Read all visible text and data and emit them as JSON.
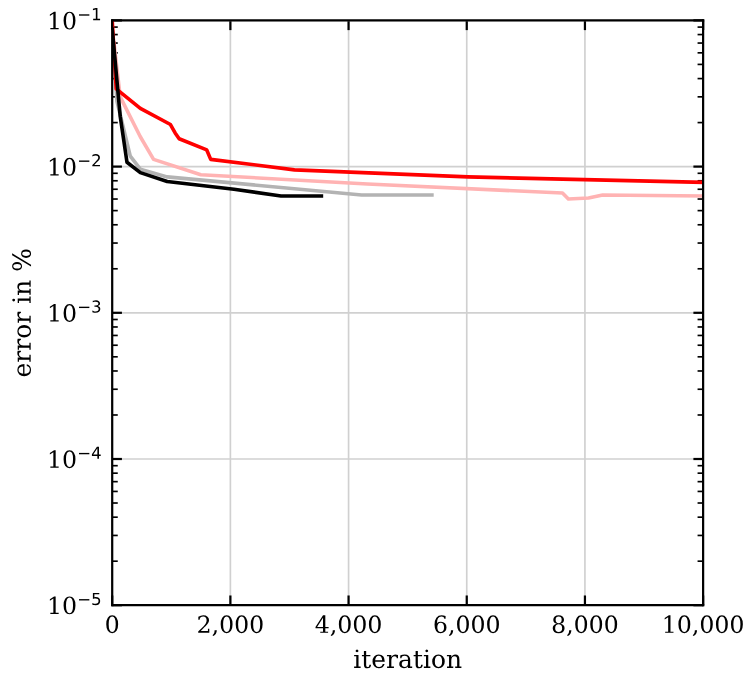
{
  "chart_data": {
    "type": "line",
    "xlabel": "iteration",
    "ylabel": "error in %",
    "log": "y",
    "grid": true,
    "legend": false,
    "xlim": [
      0,
      10000
    ],
    "ylim": [
      1e-05,
      0.1
    ],
    "xticks": [
      0,
      {
        "value": 2000,
        "label": "2,000"
      },
      {
        "value": 4000,
        "label": "4,000"
      },
      {
        "value": 6000,
        "label": "6,000"
      },
      {
        "value": 8000,
        "label": "8,000"
      },
      {
        "value": 10000,
        "label": "10,000"
      }
    ],
    "yticks": [
      {
        "value": 1e-05,
        "label": "10$^{−5}$"
      },
      {
        "value": 0.0001,
        "label": "10$^{−4}$"
      },
      {
        "value": 0.001,
        "label": "10$^{−3}$"
      },
      {
        "value": 0.01,
        "label": "10$^{−2}$"
      },
      {
        "value": 0.1,
        "label": "10$^{−1}$"
      }
    ],
    "series": [
      {
        "color": "#ffb3b3",
        "x": [
          30,
          136,
          476,
          700,
          1500,
          4320,
          7620,
          7720,
          8060,
          8300,
          10000
        ],
        "values": [
          0.07,
          0.03,
          0.016,
          0.0112,
          0.0088,
          0.0076,
          0.0066,
          0.006,
          0.0061,
          0.0064,
          0.0063
        ]
      },
      {
        "color": "#b3b3b3",
        "x": [
          0,
          80,
          306,
          476,
          930,
          4220,
          5410
        ],
        "values": [
          0.09,
          0.028,
          0.0118,
          0.0096,
          0.0085,
          0.0064,
          0.0064
        ]
      },
      {
        "color": "#ff0000",
        "x": [
          0,
          68,
          476,
          986,
          1065,
          1133,
          1600,
          1667,
          3085,
          6020,
          10000
        ],
        "values": [
          0.1,
          0.034,
          0.025,
          0.0194,
          0.017,
          0.0155,
          0.013,
          0.0112,
          0.0095,
          0.0085,
          0.0078
        ]
      },
      {
        "color": "#000000",
        "x": [
          0,
          136,
          250,
          476,
          930,
          2060,
          2857,
          3540
        ],
        "values": [
          0.087,
          0.022,
          0.0107,
          0.0091,
          0.0079,
          0.007,
          0.0063,
          0.0063
        ]
      }
    ]
  }
}
